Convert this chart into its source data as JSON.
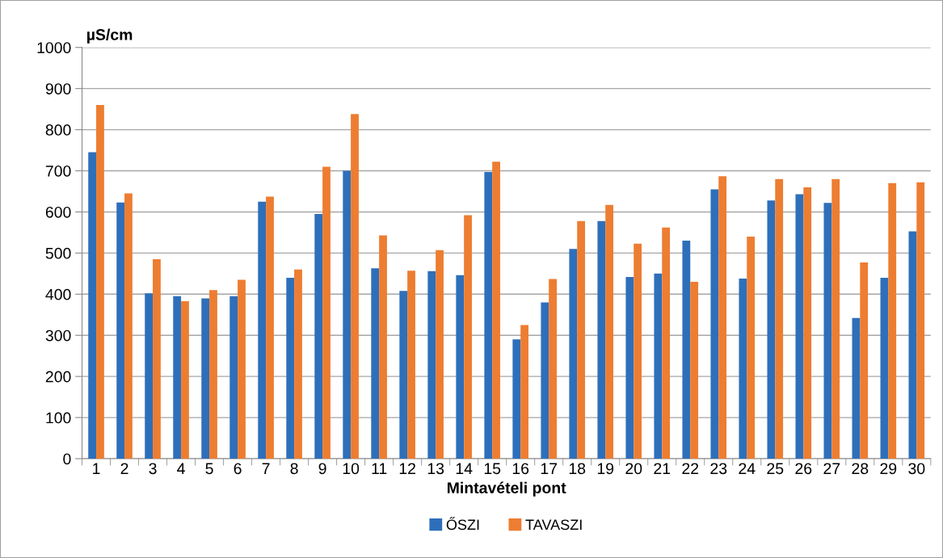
{
  "chart_data": {
    "type": "bar",
    "xlabel": "Mintavételi pont",
    "ylabel": "µS/cm",
    "categories": [
      "1",
      "2",
      "3",
      "4",
      "5",
      "6",
      "7",
      "8",
      "9",
      "10",
      "11",
      "12",
      "13",
      "14",
      "15",
      "16",
      "17",
      "18",
      "19",
      "20",
      "21",
      "22",
      "23",
      "24",
      "25",
      "26",
      "27",
      "28",
      "29",
      "30"
    ],
    "series": [
      {
        "name": "ŐSZI",
        "color": "#2e6fba",
        "values": [
          745,
          623,
          402,
          395,
          390,
          395,
          625,
          440,
          595,
          700,
          463,
          408,
          456,
          446,
          697,
          290,
          380,
          510,
          578,
          442,
          450,
          530,
          655,
          438,
          628,
          643,
          622,
          342,
          440,
          553
        ]
      },
      {
        "name": "TAVASZI",
        "color": "#ed7d31",
        "values": [
          860,
          645,
          485,
          383,
          410,
          435,
          637,
          460,
          710,
          838,
          543,
          457,
          507,
          592,
          722,
          325,
          437,
          578,
          617,
          523,
          562,
          430,
          687,
          540,
          680,
          660,
          680,
          477,
          670,
          672
        ]
      }
    ],
    "ylim": [
      0,
      1000
    ],
    "yticks": [
      0,
      100,
      200,
      300,
      400,
      500,
      600,
      700,
      800,
      900,
      1000
    ],
    "grid": "y",
    "legend": "bottom"
  }
}
